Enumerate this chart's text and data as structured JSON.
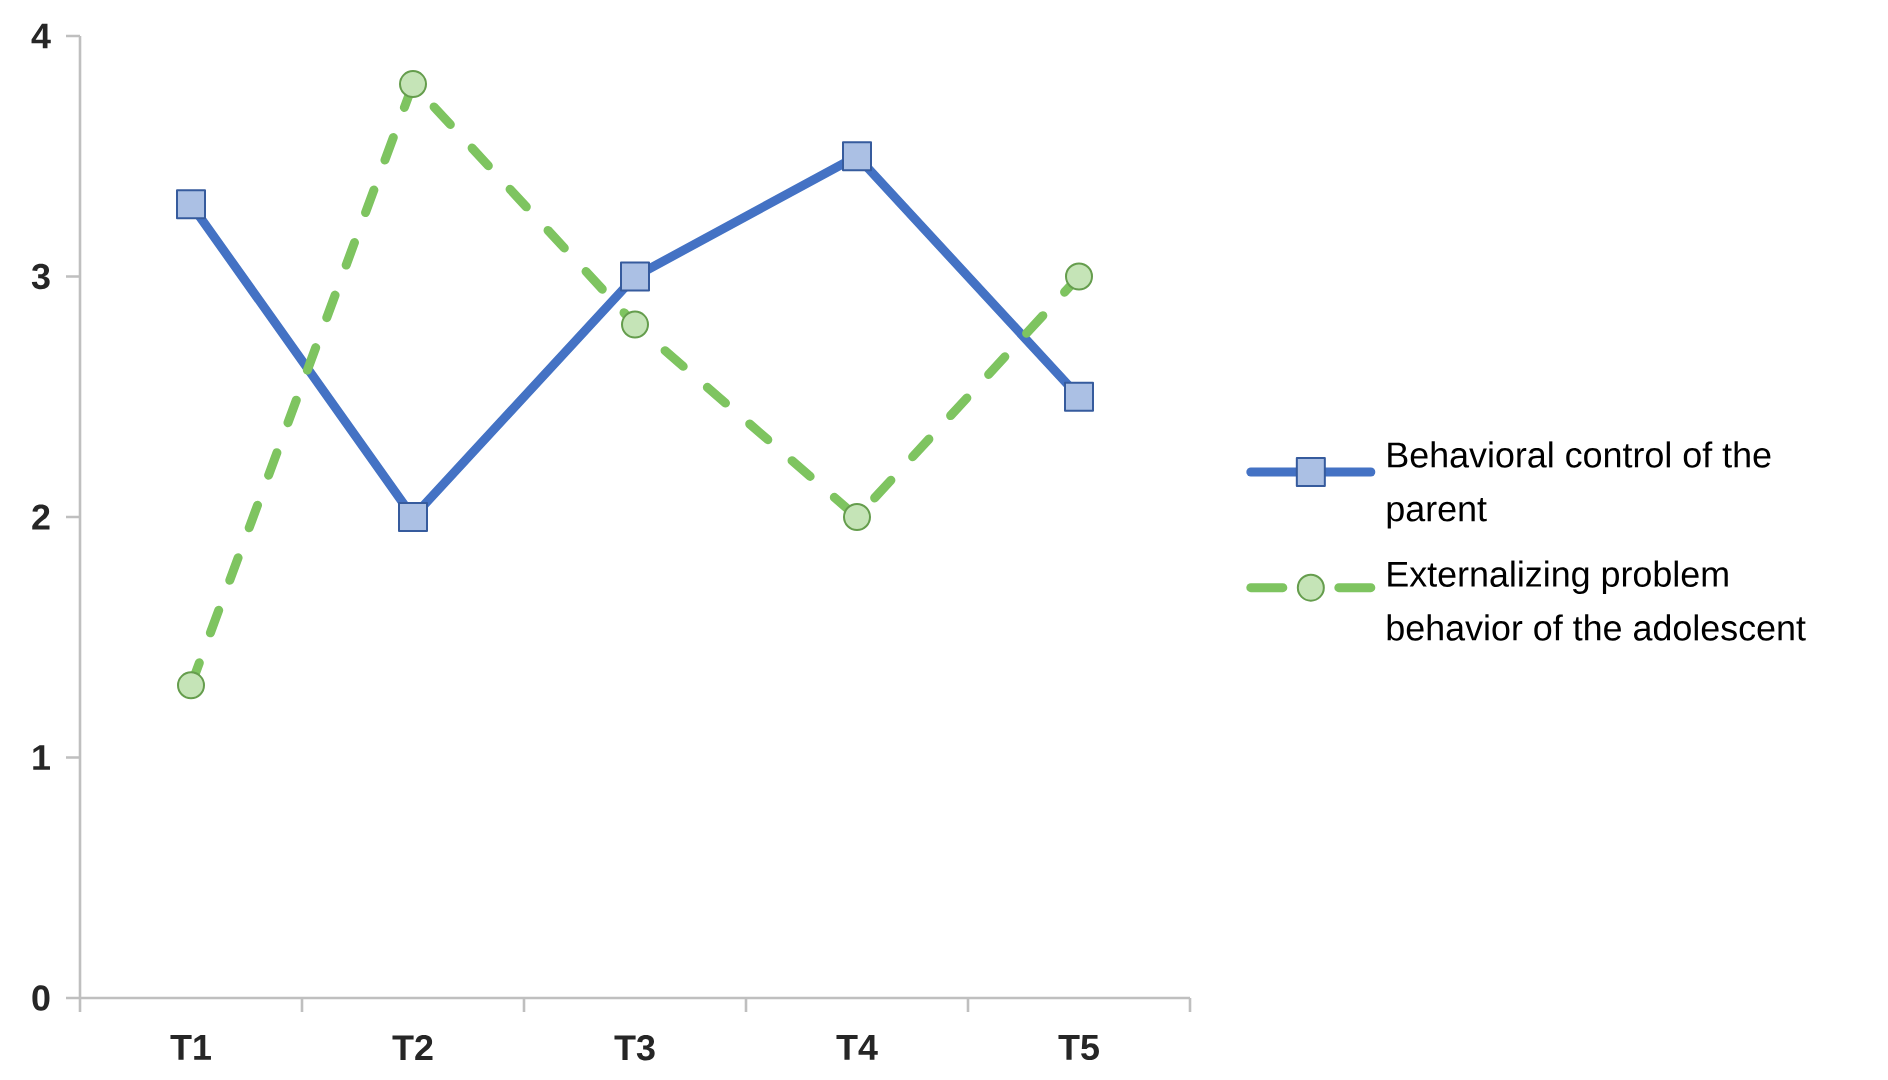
{
  "chart_data": {
    "type": "line",
    "categories": [
      "T1",
      "T2",
      "T3",
      "T4",
      "T5"
    ],
    "series": [
      {
        "name": "Behavioral control of the parent",
        "color": "#4472c4",
        "values": [
          3.3,
          2.0,
          3.0,
          3.5,
          2.5
        ],
        "marker": "square",
        "line_style": "solid"
      },
      {
        "name": "Externalizing problem behavior of the adolescent",
        "color": "#7ec460",
        "values": [
          1.3,
          3.8,
          2.8,
          2.0,
          3.0
        ],
        "marker": "circle",
        "line_style": "dashed"
      }
    ],
    "ylim": [
      0,
      4
    ],
    "yticks": [
      0,
      1,
      2,
      3,
      4
    ],
    "legend": "right"
  }
}
